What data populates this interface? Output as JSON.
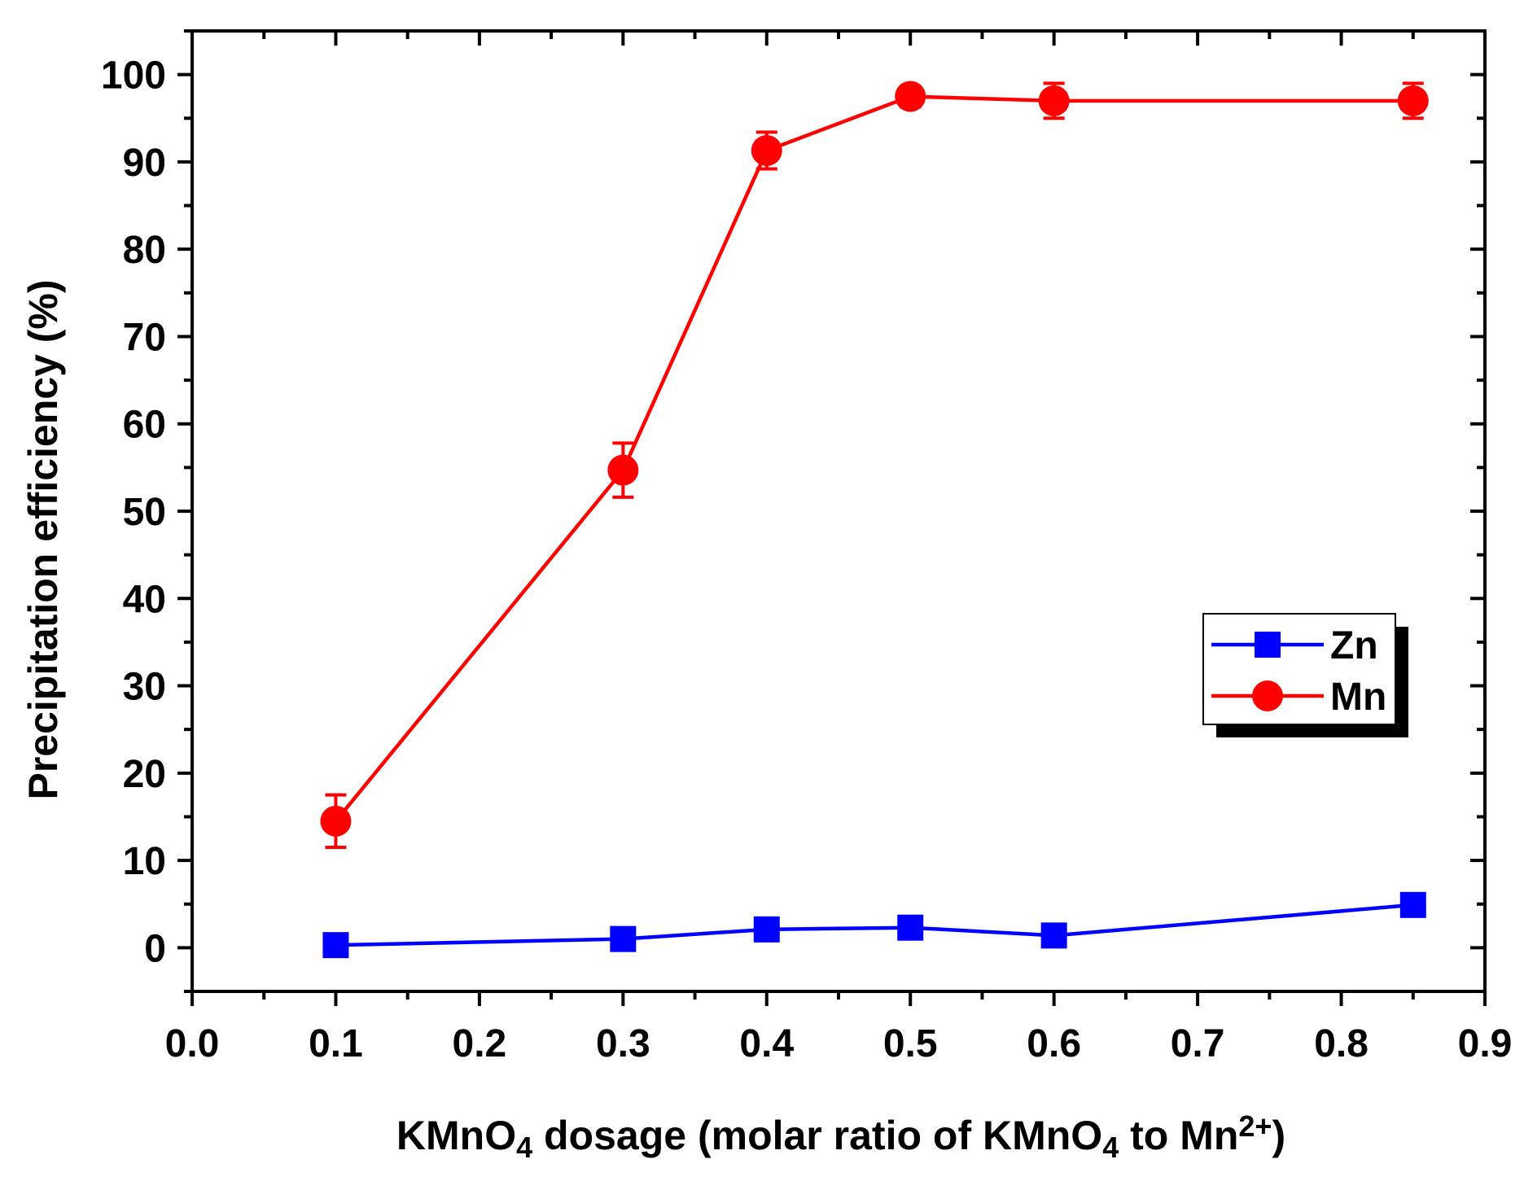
{
  "chart_data": {
    "type": "line",
    "title": "",
    "xlabel": {
      "parts": [
        {
          "text": "KMnO",
          "style": "normal"
        },
        {
          "text": "4",
          "style": "sub"
        },
        {
          "text": " dosage (molar ratio of KMnO",
          "style": "normal"
        },
        {
          "text": "4",
          "style": "sub"
        },
        {
          "text": " to Mn",
          "style": "normal"
        },
        {
          "text": "2+",
          "style": "sup"
        },
        {
          "text": ")",
          "style": "normal"
        }
      ]
    },
    "ylabel": "Precipitation efficiency (%)",
    "xlim": [
      0.0,
      0.9
    ],
    "ylim": [
      -5,
      105
    ],
    "x_ticks": [
      0.0,
      0.1,
      0.2,
      0.3,
      0.4,
      0.5,
      0.6,
      0.7,
      0.8,
      0.9
    ],
    "x_tick_labels": [
      "0.0",
      "0.1",
      "0.2",
      "0.3",
      "0.4",
      "0.5",
      "0.6",
      "0.7",
      "0.8",
      "0.9"
    ],
    "y_ticks": [
      0,
      10,
      20,
      30,
      40,
      50,
      60,
      70,
      80,
      90,
      100
    ],
    "y_tick_labels": [
      "0",
      "10",
      "20",
      "30",
      "40",
      "50",
      "60",
      "70",
      "80",
      "90",
      "100"
    ],
    "grid": false,
    "legend_position": "right",
    "series": [
      {
        "name": "Zn",
        "color": "#0000ff",
        "marker": "square",
        "x": [
          0.1,
          0.3,
          0.4,
          0.5,
          0.6,
          0.85
        ],
        "y": [
          0.3,
          1.0,
          2.1,
          2.3,
          1.4,
          4.9
        ],
        "err": [
          0.6,
          0.8,
          0.9,
          0.9,
          0.8,
          1.0
        ]
      },
      {
        "name": "Mn",
        "color": "#ff0000",
        "marker": "circle",
        "x": [
          0.1,
          0.3,
          0.4,
          0.5,
          0.6,
          0.85
        ],
        "y": [
          14.5,
          54.7,
          91.3,
          97.5,
          97.0,
          97.0
        ],
        "err": [
          3.0,
          3.1,
          2.1,
          1.2,
          2.0,
          2.0
        ]
      }
    ]
  }
}
